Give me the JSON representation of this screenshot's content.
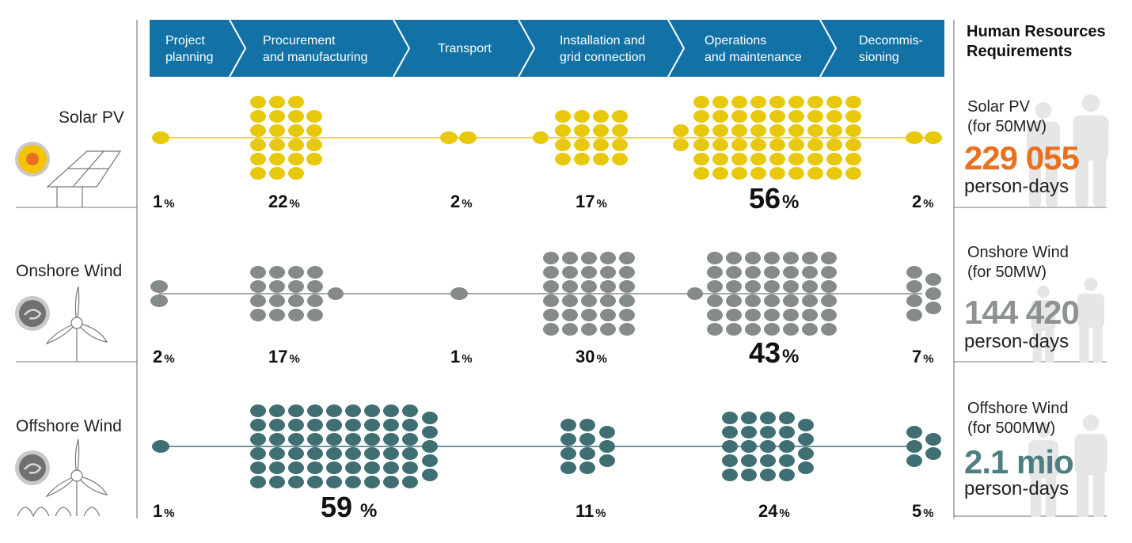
{
  "stages": [
    "Project planning",
    "Procurement and manufacturing",
    "Transport",
    "Installation and grid connection",
    "Operations and maintenance",
    "Decommis-sioning"
  ],
  "stage_lines": [
    [
      "Project",
      "planning"
    ],
    [
      "Procurement",
      "and manufacturing"
    ],
    [
      "Transport"
    ],
    [
      "Installation and",
      "grid connection"
    ],
    [
      "Operations",
      "and maintenance"
    ],
    [
      "Decommis-",
      "sioning"
    ]
  ],
  "hr_title": [
    "Human Resources",
    "Requirements"
  ],
  "unit_symbol": "%",
  "rows": [
    {
      "label": "Solar PV",
      "color": "#e8c80a",
      "line_color": "#e8c80a",
      "percentages": [
        "1",
        "22",
        "2",
        "17",
        "56",
        "2"
      ],
      "hr": {
        "name": "Solar PV",
        "capacity": "(for 50MW)",
        "value": "229 055",
        "unit": "person-days",
        "value_color": "#e8701e"
      }
    },
    {
      "label": "Onshore Wind",
      "color": "#858b87",
      "line_color": "#858b87",
      "percentages": [
        "2",
        "17",
        "1",
        "30",
        "43",
        "7"
      ],
      "hr": {
        "name": "Onshore Wind",
        "capacity": "(for 50MW)",
        "value": "144 420",
        "unit": "person-days",
        "value_color": "#8d9390"
      }
    },
    {
      "label": "Offshore Wind",
      "color": "#3f6f72",
      "line_color": "#3f6f72",
      "percentages": [
        "1",
        "59",
        "",
        "11",
        "24",
        "5"
      ],
      "hr": {
        "name": "Offshore Wind",
        "capacity": "(for 500MW)",
        "value": "2.1 mio",
        "unit": "person-days",
        "value_color": "#4d7f82"
      }
    }
  ],
  "chart_data": {
    "type": "table",
    "categories": [
      "Project planning",
      "Procurement and manufacturing",
      "Transport",
      "Installation and grid connection",
      "Operations and maintenance",
      "Decommissioning"
    ],
    "series": [
      {
        "name": "Solar PV",
        "values": [
          1,
          22,
          2,
          17,
          56,
          2
        ]
      },
      {
        "name": "Onshore Wind",
        "values": [
          2,
          17,
          1,
          30,
          43,
          7
        ]
      },
      {
        "name": "Offshore Wind",
        "values": [
          1,
          59,
          null,
          11,
          24,
          5
        ]
      }
    ]
  }
}
